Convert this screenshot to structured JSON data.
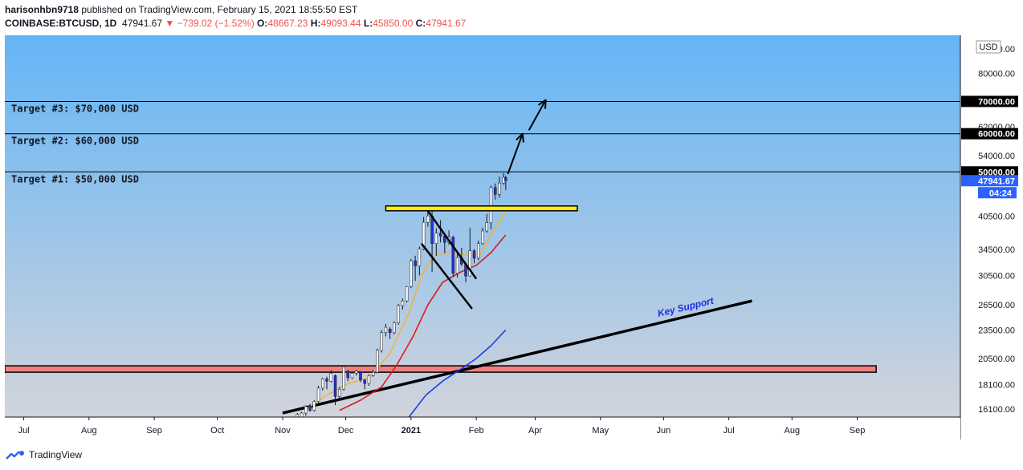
{
  "header": {
    "publisher": "harisonhbn9718",
    "published_text": "published on TradingView.com, February 15, 2021 18:55:50 EST",
    "symbol": "COINBASE:BTCUSD, 1D",
    "last": "47941.67",
    "change": "▼ −739.02 (−1.52%)",
    "o_label": "O:",
    "o_value": "48667.23",
    "h_label": "H:",
    "h_value": "49093.44",
    "l_label": "L:",
    "l_value": "45850.00",
    "c_label": "C:",
    "c_value": "47941.67"
  },
  "currency_badge": "USD",
  "footer_brand": "TradingView",
  "colors": {
    "bg_top": "#64b5f6",
    "bg_bottom": "#d1d4dc",
    "up_candle": "#ffffff",
    "down_candle": "#2a2fd4",
    "ema_short": "#f0b43c",
    "ema_mid": "#d81b1b",
    "ema_long": "#1b3ee0",
    "price_tag": "#2962ff",
    "resistance_zone": "#ffee00",
    "support_zone": "#f08080"
  },
  "chart_data": {
    "type": "candlestick",
    "title": "COINBASE:BTCUSD, 1D",
    "y_scale": "log",
    "ylim": [
      15500,
      96000
    ],
    "y_ticks": [
      16100,
      18100,
      20500,
      23500,
      26500,
      30500,
      34500,
      40500,
      54000,
      62000,
      80000,
      90000
    ],
    "x_ticks": [
      "Jul",
      "Aug",
      "Sep",
      "Oct",
      "Nov",
      "Dec",
      "2021",
      "Feb",
      "Apr",
      "May",
      "Jun",
      "Jul",
      "Aug",
      "Sep"
    ],
    "xlim": [
      "2020-06-22",
      "2021-09-19"
    ],
    "horizontal_levels": [
      {
        "label": "Target #1: $50,000 USD",
        "value": 50000,
        "axis_label": "50000.00"
      },
      {
        "label": "Target #2: $60,000 USD",
        "value": 60000,
        "axis_label": "60000.00"
      },
      {
        "label": "Target #3: $70,000 USD",
        "value": 70000,
        "axis_label": "70000.00"
      }
    ],
    "last_price": {
      "value": 47941.67,
      "label": "47941.67",
      "countdown": "04:24"
    },
    "resistance_zone": {
      "value": 42000,
      "from": "2020-12-20",
      "to": "2021-03-21"
    },
    "support_zone": {
      "value": 19500,
      "from": "2020-06-22",
      "to": "2021-08-10"
    },
    "key_support_line": {
      "label": "Key Support",
      "start": [
        "2020-11-01",
        15800
      ],
      "end": [
        "2021-06-12",
        27000
      ]
    },
    "projection_arrows": [
      {
        "start": [
          "2021-02-16",
          49500
        ],
        "end": [
          "2021-02-23",
          60000
        ]
      },
      {
        "start": [
          "2021-02-26",
          61000
        ],
        "end": [
          "2021-03-06",
          70500
        ]
      }
    ],
    "channel_lines": [
      {
        "start": [
          "2021-01-09",
          41500
        ],
        "end": [
          "2021-02-01",
          30000
        ]
      },
      {
        "start": [
          "2021-01-06",
          35500
        ],
        "end": [
          "2021-01-30",
          26000
        ]
      }
    ],
    "ema_short": [
      [
        "2020-11-12",
        16100
      ],
      [
        "2020-11-22",
        17200
      ],
      [
        "2020-12-02",
        18200
      ],
      [
        "2020-12-12",
        18700
      ],
      [
        "2020-12-22",
        21000
      ],
      [
        "2020-12-31",
        25500
      ],
      [
        "2021-01-06",
        30500
      ],
      [
        "2021-01-12",
        33500
      ],
      [
        "2021-01-20",
        34200
      ],
      [
        "2021-01-28",
        33500
      ],
      [
        "2021-02-03",
        33800
      ],
      [
        "2021-02-08",
        37000
      ],
      [
        "2021-02-15",
        41500
      ]
    ],
    "ema_mid": [
      [
        "2020-11-28",
        16000
      ],
      [
        "2020-12-08",
        16800
      ],
      [
        "2020-12-18",
        17900
      ],
      [
        "2020-12-25",
        19800
      ],
      [
        "2021-01-02",
        22800
      ],
      [
        "2021-01-09",
        26500
      ],
      [
        "2021-01-16",
        29500
      ],
      [
        "2021-01-24",
        30900
      ],
      [
        "2021-02-01",
        32000
      ],
      [
        "2021-02-08",
        34000
      ],
      [
        "2021-02-15",
        37000
      ]
    ],
    "ema_long": [
      [
        "2020-12-31",
        15500
      ],
      [
        "2021-01-08",
        17200
      ],
      [
        "2021-01-16",
        18400
      ],
      [
        "2021-01-24",
        19400
      ],
      [
        "2021-02-01",
        20500
      ],
      [
        "2021-02-08",
        21800
      ],
      [
        "2021-02-15",
        23500
      ]
    ],
    "candles": [
      {
        "d": "2020-11-08",
        "o": 15500,
        "h": 15800,
        "l": 15200,
        "c": 15700
      },
      {
        "d": "2020-11-10",
        "o": 15400,
        "h": 15900,
        "l": 15300,
        "c": 15800
      },
      {
        "d": "2020-11-12",
        "o": 15800,
        "h": 16400,
        "l": 15600,
        "c": 16300
      },
      {
        "d": "2020-11-14",
        "o": 16300,
        "h": 16500,
        "l": 15900,
        "c": 16000
      },
      {
        "d": "2020-11-16",
        "o": 16000,
        "h": 16800,
        "l": 15900,
        "c": 16700
      },
      {
        "d": "2020-11-18",
        "o": 16700,
        "h": 18000,
        "l": 16600,
        "c": 17800
      },
      {
        "d": "2020-11-20",
        "o": 17800,
        "h": 18700,
        "l": 17600,
        "c": 18600
      },
      {
        "d": "2020-11-22",
        "o": 18600,
        "h": 18800,
        "l": 17700,
        "c": 18400
      },
      {
        "d": "2020-11-24",
        "o": 18400,
        "h": 19400,
        "l": 18300,
        "c": 19100
      },
      {
        "d": "2020-11-26",
        "o": 18900,
        "h": 19000,
        "l": 16400,
        "c": 17100
      },
      {
        "d": "2020-11-28",
        "o": 17100,
        "h": 17900,
        "l": 16900,
        "c": 17700
      },
      {
        "d": "2020-11-30",
        "o": 17700,
        "h": 19800,
        "l": 17600,
        "c": 19700
      },
      {
        "d": "2020-12-02",
        "o": 19300,
        "h": 19400,
        "l": 18400,
        "c": 18700
      },
      {
        "d": "2020-12-04",
        "o": 18700,
        "h": 19200,
        "l": 18600,
        "c": 19100
      },
      {
        "d": "2020-12-06",
        "o": 19100,
        "h": 19400,
        "l": 18900,
        "c": 19300
      },
      {
        "d": "2020-12-08",
        "o": 19200,
        "h": 19300,
        "l": 18300,
        "c": 18500
      },
      {
        "d": "2020-12-10",
        "o": 18500,
        "h": 18600,
        "l": 17700,
        "c": 18200
      },
      {
        "d": "2020-12-12",
        "o": 18200,
        "h": 19000,
        "l": 18000,
        "c": 18900
      },
      {
        "d": "2020-12-14",
        "o": 18900,
        "h": 19400,
        "l": 18800,
        "c": 19200
      },
      {
        "d": "2020-12-16",
        "o": 19200,
        "h": 21500,
        "l": 19100,
        "c": 21300
      },
      {
        "d": "2020-12-18",
        "o": 21300,
        "h": 23500,
        "l": 21100,
        "c": 23200
      },
      {
        "d": "2020-12-20",
        "o": 23200,
        "h": 24200,
        "l": 22800,
        "c": 23800
      },
      {
        "d": "2020-12-22",
        "o": 23600,
        "h": 23800,
        "l": 22500,
        "c": 23200
      },
      {
        "d": "2020-12-24",
        "o": 23200,
        "h": 24500,
        "l": 23000,
        "c": 24300
      },
      {
        "d": "2020-12-26",
        "o": 24300,
        "h": 26600,
        "l": 24100,
        "c": 26400
      },
      {
        "d": "2020-12-28",
        "o": 26400,
        "h": 27300,
        "l": 25900,
        "c": 27000
      },
      {
        "d": "2020-12-30",
        "o": 27000,
        "h": 29000,
        "l": 26800,
        "c": 28900
      },
      {
        "d": "2021-01-01",
        "o": 28900,
        "h": 33000,
        "l": 28700,
        "c": 32700
      },
      {
        "d": "2021-01-03",
        "o": 32700,
        "h": 33500,
        "l": 29700,
        "c": 31900
      },
      {
        "d": "2021-01-05",
        "o": 31900,
        "h": 35000,
        "l": 30500,
        "c": 34600
      },
      {
        "d": "2021-01-07",
        "o": 34600,
        "h": 40300,
        "l": 34400,
        "c": 39300
      },
      {
        "d": "2021-01-09",
        "o": 39300,
        "h": 41900,
        "l": 38500,
        "c": 40500
      },
      {
        "d": "2021-01-11",
        "o": 40500,
        "h": 41500,
        "l": 31000,
        "c": 35500
      },
      {
        "d": "2021-01-13",
        "o": 35500,
        "h": 38200,
        "l": 33500,
        "c": 37300
      },
      {
        "d": "2021-01-15",
        "o": 37300,
        "h": 39700,
        "l": 35700,
        "c": 36800
      },
      {
        "d": "2021-01-17",
        "o": 36800,
        "h": 37300,
        "l": 33900,
        "c": 35700
      },
      {
        "d": "2021-01-19",
        "o": 35700,
        "h": 37800,
        "l": 35300,
        "c": 36600
      },
      {
        "d": "2021-01-21",
        "o": 36600,
        "h": 36800,
        "l": 30300,
        "c": 30800
      },
      {
        "d": "2021-01-23",
        "o": 30800,
        "h": 33900,
        "l": 30200,
        "c": 33200
      },
      {
        "d": "2021-01-25",
        "o": 33200,
        "h": 34800,
        "l": 31900,
        "c": 32200
      },
      {
        "d": "2021-01-27",
        "o": 32200,
        "h": 32500,
        "l": 29500,
        "c": 30400
      },
      {
        "d": "2021-01-29",
        "o": 30400,
        "h": 38300,
        "l": 30300,
        "c": 34300
      },
      {
        "d": "2021-01-31",
        "o": 34300,
        "h": 34600,
        "l": 32300,
        "c": 33100
      },
      {
        "d": "2021-02-02",
        "o": 33100,
        "h": 36000,
        "l": 32800,
        "c": 35500
      },
      {
        "d": "2021-02-04",
        "o": 35500,
        "h": 38300,
        "l": 35300,
        "c": 37700
      },
      {
        "d": "2021-02-06",
        "o": 37700,
        "h": 40900,
        "l": 37400,
        "c": 39200
      },
      {
        "d": "2021-02-08",
        "o": 39200,
        "h": 46800,
        "l": 38000,
        "c": 46400
      },
      {
        "d": "2021-02-10",
        "o": 46400,
        "h": 47300,
        "l": 43800,
        "c": 44900
      },
      {
        "d": "2021-02-12",
        "o": 44900,
        "h": 48900,
        "l": 44200,
        "c": 47400
      },
      {
        "d": "2021-02-14",
        "o": 47400,
        "h": 49700,
        "l": 47000,
        "c": 48700
      },
      {
        "d": "2021-02-15",
        "o": 48667.23,
        "h": 49093.44,
        "l": 45850,
        "c": 47941.67
      }
    ]
  }
}
